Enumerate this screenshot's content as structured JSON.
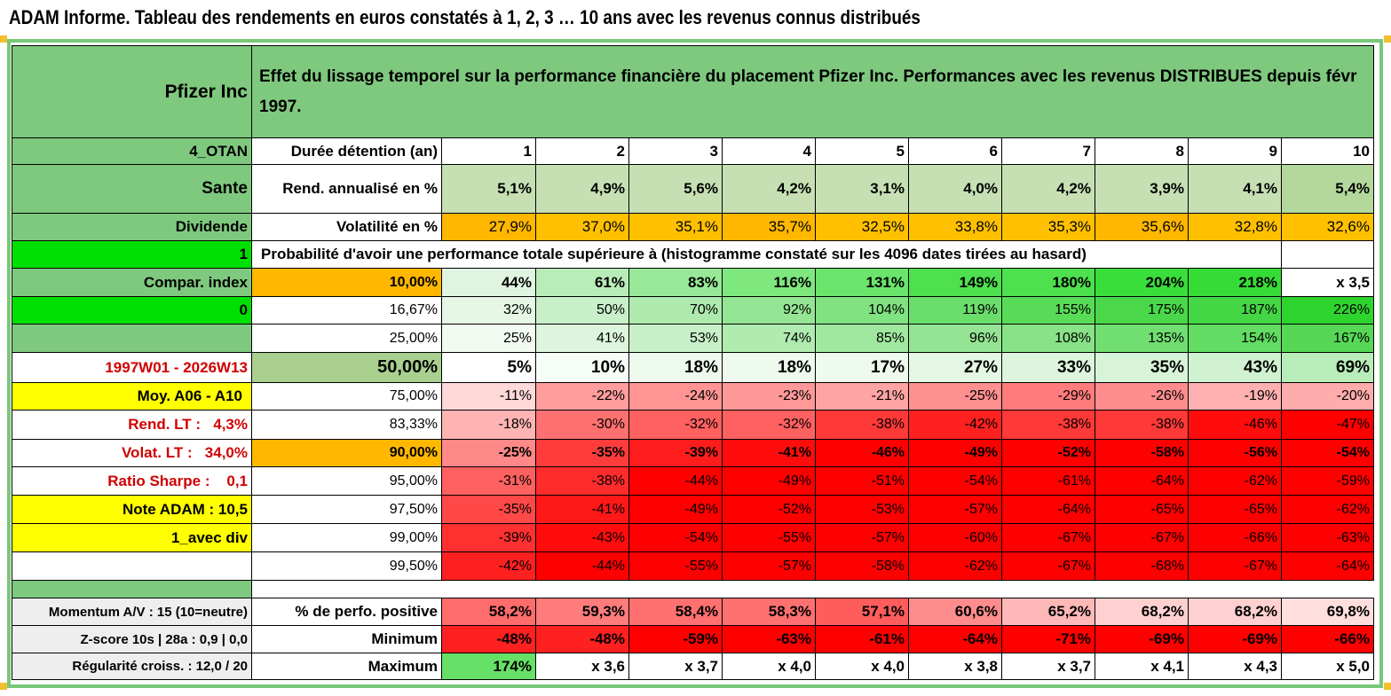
{
  "title": "ADAM Informe. Tableau des rendements en euros constatés à 1, 2, 3 … 10 ans avec les revenus connus distribués",
  "header": {
    "company": "Pfizer Inc",
    "description": "Effet du lissage temporel sur la performance financière du placement Pfizer Inc. Performances avec les revenus DISTRIBUES depuis févr 1997."
  },
  "left_labels": {
    "otan": "4_OTAN",
    "sector": "Sante",
    "type": "Dividende",
    "flag1": "1",
    "compar": "Compar. index",
    "flag0": "0",
    "period": "1997W01 - 2026W13",
    "moy": "Moy. A06 - A10",
    "rend_lt": "Rend. LT :   4,3%",
    "volat_lt": "Volat. LT :   34,0%",
    "sharpe": "Ratio Sharpe :    0,1",
    "note": "Note ADAM : 10,5",
    "avec_div": "1_avec div",
    "momentum": "Momentum A/V : 15 (10=neutre)",
    "zscore": "Z-score 10s | 28a : 0,9 | 0,0",
    "regularite": "Régularité croiss. : 12,0 / 20"
  },
  "rows": {
    "duree_label": "Durée détention (an)",
    "years": [
      "1",
      "2",
      "3",
      "4",
      "5",
      "6",
      "7",
      "8",
      "9",
      "10"
    ],
    "rend_label": "Rend. annualisé en %",
    "rend": [
      "5,1%",
      "4,9%",
      "5,6%",
      "4,2%",
      "3,1%",
      "4,0%",
      "4,2%",
      "3,9%",
      "4,1%",
      "5,4%"
    ],
    "vol_label": "Volatilité en %",
    "vol": [
      "27,9%",
      "37,0%",
      "35,1%",
      "35,7%",
      "32,5%",
      "33,8%",
      "35,3%",
      "35,6%",
      "32,8%",
      "32,6%"
    ],
    "proba_label": "Probabilité d'avoir une performance totale supérieure à (histogramme constaté sur les 4096 dates tirées au hasard)"
  },
  "quantiles": [
    {
      "p": "10,00%",
      "v": [
        "44%",
        "61%",
        "83%",
        "116%",
        "131%",
        "149%",
        "180%",
        "204%",
        "218%",
        "x 3,5"
      ]
    },
    {
      "p": "16,67%",
      "v": [
        "32%",
        "50%",
        "70%",
        "92%",
        "104%",
        "119%",
        "155%",
        "175%",
        "187%",
        "226%"
      ]
    },
    {
      "p": "25,00%",
      "v": [
        "25%",
        "41%",
        "53%",
        "74%",
        "85%",
        "96%",
        "108%",
        "135%",
        "154%",
        "167%"
      ]
    },
    {
      "p": "50,00%",
      "v": [
        "5%",
        "10%",
        "18%",
        "18%",
        "17%",
        "27%",
        "33%",
        "35%",
        "43%",
        "69%"
      ]
    },
    {
      "p": "75,00%",
      "v": [
        "-11%",
        "-22%",
        "-24%",
        "-23%",
        "-21%",
        "-25%",
        "-29%",
        "-26%",
        "-19%",
        "-20%"
      ]
    },
    {
      "p": "83,33%",
      "v": [
        "-18%",
        "-30%",
        "-32%",
        "-32%",
        "-38%",
        "-42%",
        "-38%",
        "-38%",
        "-46%",
        "-47%"
      ]
    },
    {
      "p": "90,00%",
      "v": [
        "-25%",
        "-35%",
        "-39%",
        "-41%",
        "-46%",
        "-49%",
        "-52%",
        "-58%",
        "-56%",
        "-54%"
      ]
    },
    {
      "p": "95,00%",
      "v": [
        "-31%",
        "-38%",
        "-44%",
        "-49%",
        "-51%",
        "-54%",
        "-61%",
        "-64%",
        "-62%",
        "-59%"
      ]
    },
    {
      "p": "97,50%",
      "v": [
        "-35%",
        "-41%",
        "-49%",
        "-52%",
        "-53%",
        "-57%",
        "-64%",
        "-65%",
        "-65%",
        "-62%"
      ]
    },
    {
      "p": "99,00%",
      "v": [
        "-39%",
        "-43%",
        "-54%",
        "-55%",
        "-57%",
        "-60%",
        "-67%",
        "-67%",
        "-66%",
        "-63%"
      ]
    },
    {
      "p": "99,50%",
      "v": [
        "-42%",
        "-44%",
        "-55%",
        "-57%",
        "-58%",
        "-62%",
        "-67%",
        "-68%",
        "-67%",
        "-64%"
      ]
    }
  ],
  "bottom": {
    "pos_label": "% de perfo. positive",
    "pos": [
      "58,2%",
      "59,3%",
      "58,4%",
      "58,3%",
      "57,1%",
      "60,6%",
      "65,2%",
      "68,2%",
      "68,2%",
      "69,8%"
    ],
    "min_label": "Minimum",
    "min": [
      "-48%",
      "-48%",
      "-59%",
      "-63%",
      "-61%",
      "-64%",
      "-71%",
      "-69%",
      "-69%",
      "-66%"
    ],
    "max_label": "Maximum",
    "max": [
      "174%",
      "x 3,6",
      "x 3,7",
      "x 4,0",
      "x 4,0",
      "x 3,8",
      "x 3,7",
      "x 4,1",
      "x 4,3",
      "x 5,0"
    ]
  },
  "colors": {
    "quantiles": [
      [
        "#e0f5e0",
        "#b8ecb8",
        "#98e898",
        "#7ee87e",
        "#6ae46a",
        "#4ee04e",
        "#4ee04e",
        "#3ade3a",
        "#36dc36",
        "#ffffff"
      ],
      [
        "#ffffff",
        "#ffffff",
        "#ffffff",
        "#ffffff",
        "#ffffff",
        "#ffffff",
        "#ffffff",
        "#ffffff",
        "#ffffff",
        "#4ede4e"
      ],
      [
        "#ffffff",
        "#ffffff",
        "#ffffff",
        "#ffffff",
        "#ffffff",
        "#ffffff",
        "#ffffff",
        "#ffffff",
        "#ffffff",
        "#ffffff"
      ],
      [
        "#ffffff",
        "#ffffff",
        "#ffffff",
        "#ffffff",
        "#ffffff",
        "#ffffff",
        "#ffffff",
        "#ffffff",
        "#ffffff",
        "#d0f0d0"
      ],
      [
        "#ffd8d8",
        "#ff9c9c",
        "#ff9494",
        "#ff9898",
        "#ffa4a4",
        "#ff9090",
        "#ff7c7c",
        "#ff8c8c",
        "#ffb0b0",
        "#ffacac"
      ],
      [
        "#ffb4b4",
        "#ff7070",
        "#ff6060",
        "#ff6060",
        "#ff3838",
        "#ff2020",
        "#ff3838",
        "#ff3838",
        "#ff0c0c",
        "#ff0000"
      ],
      [
        "#ff8888",
        "#ff3c3c",
        "#ff1c1c",
        "#ff0c0c",
        "#ff0000",
        "#ff0000",
        "#ff0000",
        "#ff0000",
        "#ff0000",
        "#ff0000"
      ],
      [
        "#ff6060",
        "#ff2c2c",
        "#ff0000",
        "#ff0000",
        "#ff0000",
        "#ff0000",
        "#ff0000",
        "#ff0000",
        "#ff0000",
        "#ff0000"
      ],
      [
        "#ff4848",
        "#ff1818",
        "#ff0000",
        "#ff0000",
        "#ff0000",
        "#ff0000",
        "#ff0000",
        "#ff0000",
        "#ff0000",
        "#ff0000"
      ],
      [
        "#ff3030",
        "#ff0c0c",
        "#ff0000",
        "#ff0000",
        "#ff0000",
        "#ff0000",
        "#ff0000",
        "#ff0000",
        "#ff0000",
        "#ff0000"
      ],
      [
        "#ff2020",
        "#ff0000",
        "#ff0000",
        "#ff0000",
        "#ff0000",
        "#ff0000",
        "#ff0000",
        "#ff0000",
        "#ff0000",
        "#ff0000"
      ]
    ],
    "pos": [
      "#ff6c6c",
      "#ff7c7c",
      "#ff7070",
      "#ff7070",
      "#ff5c5c",
      "#ff8c8c",
      "#ffb8b8",
      "#ffd0d0",
      "#ffd0d0",
      "#ffdede"
    ],
    "min": [
      "#ff2020",
      "#ff2020",
      "#ff0000",
      "#ff0000",
      "#ff0000",
      "#ff0000",
      "#ff0000",
      "#ff0000",
      "#ff0000",
      "#ff0000"
    ],
    "max": [
      "#66e066",
      "#ffffff",
      "#ffffff",
      "#ffffff",
      "#ffffff",
      "#ffffff",
      "#ffffff",
      "#ffffff",
      "#ffffff",
      "#ffffff"
    ]
  }
}
